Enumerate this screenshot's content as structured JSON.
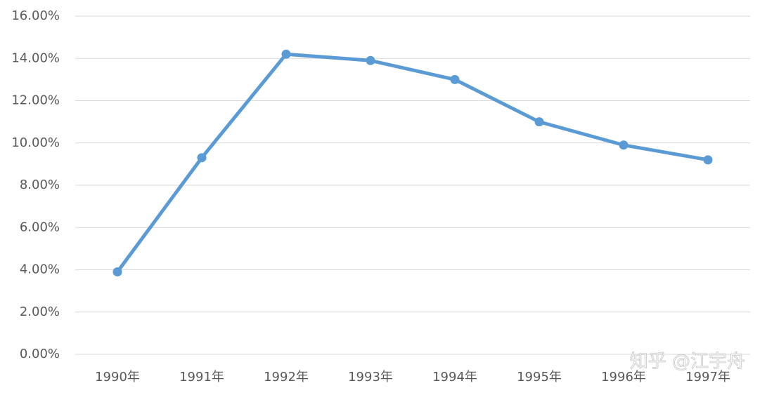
{
  "chart_data": {
    "type": "line",
    "categories": [
      "1990年",
      "1991年",
      "1992年",
      "1993年",
      "1994年",
      "1995年",
      "1996年",
      "1997年"
    ],
    "series": [
      {
        "name": "",
        "color": "#5b9bd5",
        "values": [
          3.9,
          9.3,
          14.2,
          13.9,
          13.0,
          11.0,
          9.9,
          9.2
        ]
      }
    ],
    "ylim": [
      0,
      16
    ],
    "yticks": [
      {
        "value": 0,
        "label": "0.00%"
      },
      {
        "value": 2,
        "label": "2.00%"
      },
      {
        "value": 4,
        "label": "4.00%"
      },
      {
        "value": 6,
        "label": "6.00%"
      },
      {
        "value": 8,
        "label": "8.00%"
      },
      {
        "value": 10,
        "label": "10.00%"
      },
      {
        "value": 12,
        "label": "12.00%"
      },
      {
        "value": 14,
        "label": "14.00%"
      },
      {
        "value": 16,
        "label": "16.00%"
      }
    ],
    "grid": true,
    "annotations": [
      "知乎 @江宇舟"
    ]
  }
}
